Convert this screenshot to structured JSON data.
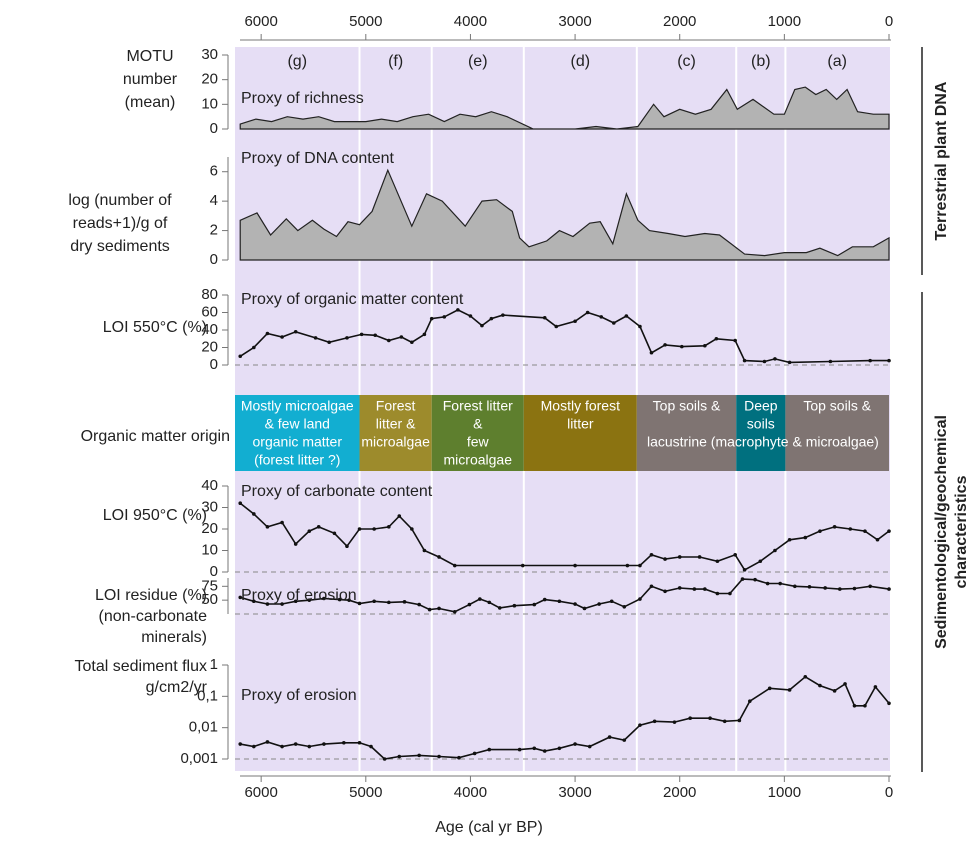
{
  "axis": {
    "xlabel": "Age (cal yr BP)",
    "xlim": [
      6250,
      0
    ],
    "xticks": [
      6000,
      5000,
      4000,
      3000,
      2000,
      1000,
      0
    ],
    "zones": {
      "labels": [
        "(g)",
        "(f)",
        "(e)",
        "(d)",
        "(c)",
        "(b)",
        "(a)"
      ],
      "bounds": [
        5060,
        4370,
        3490,
        2410,
        1460,
        990
      ]
    }
  },
  "groups": [
    [
      "Terrestrial plant DNA"
    ],
    [
      "Sedimentological/geochemical",
      "characteristics"
    ]
  ],
  "origin": {
    "label": "Organic matter origin",
    "span_text": "lacustrine (macrophyte & microalgae)",
    "boxes": [
      {
        "lines": [
          "Mostly microalgae",
          "& few land",
          "organic matter",
          "(forest litter ?)"
        ],
        "color": "#12aed1"
      },
      {
        "lines": [
          "Forest",
          "litter &",
          "microalgae"
        ],
        "color": "#9d8b2c"
      },
      {
        "lines": [
          "Forest litter",
          "&",
          "few",
          "microalgae"
        ],
        "color": "#5e7f2e"
      },
      {
        "lines": [
          "Mostly forest",
          "litter"
        ],
        "color": "#8b7311"
      },
      {
        "lines": [
          "Top soils &"
        ],
        "color": "#7f7472"
      },
      {
        "lines": [
          "Deep",
          "soils"
        ],
        "color": "#00707f"
      },
      {
        "lines": [
          "Top soils &"
        ],
        "color": "#7f7472"
      }
    ]
  },
  "chart_data": [
    {
      "type": "area",
      "ylabel": [
        "MOTU",
        "number",
        "(mean)"
      ],
      "subtitle": "Proxy of richness",
      "color": "#b3b3b3",
      "x": [
        6200,
        6050,
        5900,
        5750,
        5600,
        5450,
        5300,
        5150,
        5000,
        4850,
        4700,
        4550,
        4400,
        4250,
        4100,
        3950,
        3800,
        3650,
        3400,
        3200,
        3000,
        2800,
        2600,
        2400,
        2250,
        2150,
        2000,
        1850,
        1700,
        1550,
        1450,
        1300,
        1200,
        1100,
        1000,
        900,
        800,
        700,
        600,
        500,
        400,
        300,
        150,
        0
      ],
      "values": [
        2,
        4,
        3,
        5,
        4,
        5,
        3,
        3,
        3,
        4,
        3,
        5,
        6,
        3,
        6,
        5,
        7,
        5,
        0,
        0,
        0,
        1,
        0,
        1,
        10,
        5,
        8,
        6,
        8,
        16,
        8,
        12,
        9,
        6,
        6,
        16,
        17,
        14,
        16,
        12,
        16,
        7,
        6,
        6
      ],
      "ylim": [
        0,
        30
      ],
      "yticks": [
        0,
        10,
        20,
        30
      ]
    },
    {
      "type": "area",
      "ylabel": [
        "log (number of",
        "reads+1)/g of",
        "dry sediments"
      ],
      "subtitle": "Proxy of DNA content",
      "color": "#b3b3b3",
      "x": [
        6200,
        6040,
        5910,
        5760,
        5650,
        5510,
        5400,
        5280,
        5170,
        5060,
        4940,
        4790,
        4560,
        4420,
        4270,
        4050,
        3890,
        3750,
        3600,
        3530,
        3440,
        3270,
        3150,
        3020,
        2860,
        2760,
        2640,
        2510,
        2400,
        2290,
        2110,
        1950,
        1760,
        1620,
        1380,
        1190,
        1000,
        790,
        660,
        490,
        350,
        150,
        0
      ],
      "values": [
        2.7,
        3.2,
        1.7,
        2.8,
        2.0,
        2.7,
        2.1,
        1.6,
        2.6,
        2.4,
        3.3,
        6.1,
        2.3,
        4.5,
        4.0,
        2.3,
        4.0,
        4.1,
        3.3,
        1.5,
        0.9,
        1.3,
        2.0,
        1.6,
        2.5,
        2.6,
        1.1,
        4.5,
        2.7,
        2.0,
        1.8,
        1.6,
        1.8,
        1.7,
        0.4,
        0.3,
        0.5,
        0.5,
        0.8,
        0.3,
        0.9,
        0.9,
        1.5
      ],
      "ylim": [
        0,
        7
      ],
      "yticks": [
        0,
        2,
        4,
        6
      ]
    },
    {
      "type": "line",
      "ylabel": [
        "LOI 550°C (%)"
      ],
      "subtitle": "Proxy of organic matter content",
      "color": "#111111",
      "baseline": true,
      "x": [
        6200,
        6070,
        5940,
        5800,
        5670,
        5480,
        5350,
        5180,
        5040,
        4910,
        4780,
        4660,
        4560,
        4440,
        4370,
        4250,
        4120,
        4000,
        3890,
        3800,
        3690,
        3290,
        3180,
        3000,
        2880,
        2750,
        2630,
        2510,
        2380,
        2270,
        2140,
        1980,
        1760,
        1650,
        1470,
        1380,
        1190,
        1090,
        950,
        560,
        180,
        0
      ],
      "values": [
        10,
        20,
        36,
        32,
        38,
        31,
        26,
        31,
        35,
        34,
        28,
        32,
        26,
        35,
        53,
        55,
        63,
        56,
        45,
        53,
        57,
        54,
        44,
        50,
        60,
        55,
        48,
        56,
        44,
        14,
        23,
        21,
        22,
        30,
        28,
        5,
        4,
        7,
        3,
        4,
        5,
        5
      ],
      "ylim": [
        0,
        80
      ],
      "yticks": [
        0,
        20,
        40,
        60,
        80
      ]
    },
    {
      "type": "line",
      "ylabel": [
        "LOI 950°C (%)"
      ],
      "subtitle": "Proxy of carbonate content",
      "color": "#111111",
      "baseline": true,
      "x": [
        6200,
        6070,
        5940,
        5800,
        5670,
        5540,
        5450,
        5300,
        5180,
        5060,
        4920,
        4780,
        4680,
        4560,
        4440,
        4300,
        4150,
        3500,
        3000,
        2500,
        2380,
        2270,
        2140,
        2000,
        1810,
        1640,
        1470,
        1380,
        1230,
        1090,
        950,
        800,
        660,
        520,
        370,
        230,
        110,
        0
      ],
      "values": [
        32,
        27,
        21,
        23,
        13,
        19,
        21,
        18,
        12,
        20,
        20,
        21,
        26,
        20,
        10,
        7,
        3,
        3,
        3,
        3,
        3,
        8,
        6,
        7,
        7,
        5,
        8,
        1,
        5,
        10,
        15,
        16,
        19,
        21,
        20,
        19,
        15,
        19
      ],
      "ylim": [
        0,
        40
      ],
      "yticks": [
        0,
        10,
        20,
        30,
        40
      ]
    },
    {
      "type": "line",
      "ylabel": [
        "LOI residue (%)",
        "(non-carbonate",
        "minerals)"
      ],
      "subtitle": "Proxy of erosion",
      "color": "#111111",
      "baseline": true,
      "x": [
        6200,
        6070,
        5940,
        5800,
        5670,
        5540,
        5400,
        5250,
        5160,
        5060,
        4920,
        4780,
        4630,
        4490,
        4390,
        4300,
        4150,
        4010,
        3910,
        3820,
        3720,
        3580,
        3390,
        3290,
        3150,
        3000,
        2910,
        2770,
        2650,
        2530,
        2380,
        2270,
        2140,
        2000,
        1860,
        1760,
        1640,
        1520,
        1400,
        1280,
        1160,
        1040,
        900,
        760,
        610,
        470,
        330,
        180,
        0
      ],
      "values": [
        55,
        48,
        43,
        43,
        48,
        50,
        53,
        51,
        50,
        44,
        48,
        46,
        47,
        42,
        33,
        35,
        29,
        42,
        52,
        46,
        36,
        40,
        42,
        51,
        48,
        43,
        35,
        43,
        48,
        38,
        52,
        75,
        66,
        72,
        70,
        70,
        62,
        62,
        88,
        87,
        80,
        80,
        75,
        74,
        72,
        70,
        71,
        75,
        70
      ],
      "ylim": [
        25,
        90
      ],
      "yticks": [
        50,
        75
      ]
    },
    {
      "type": "line",
      "log": true,
      "ylabel": [
        "Total sediment flux",
        "g/cm2/yr"
      ],
      "subtitle": "Proxy of erosion",
      "color": "#111111",
      "baseline": true,
      "x": [
        6200,
        6070,
        5940,
        5800,
        5670,
        5540,
        5400,
        5210,
        5060,
        4950,
        4820,
        4680,
        4490,
        4300,
        4110,
        3960,
        3820,
        3530,
        3390,
        3290,
        3150,
        3000,
        2860,
        2670,
        2530,
        2380,
        2240,
        2050,
        1900,
        1710,
        1570,
        1430,
        1330,
        1140,
        950,
        800,
        660,
        520,
        420,
        330,
        230,
        130,
        0
      ],
      "values": [
        0.003,
        0.0025,
        0.0035,
        0.0025,
        0.003,
        0.0025,
        0.003,
        0.0033,
        0.0033,
        0.0025,
        0.001,
        0.0012,
        0.0013,
        0.0012,
        0.0011,
        0.0015,
        0.002,
        0.002,
        0.0022,
        0.0018,
        0.0022,
        0.003,
        0.0025,
        0.005,
        0.004,
        0.012,
        0.016,
        0.015,
        0.02,
        0.02,
        0.016,
        0.017,
        0.07,
        0.18,
        0.16,
        0.42,
        0.22,
        0.15,
        0.25,
        0.05,
        0.05,
        0.2,
        0.06
      ],
      "ylim": [
        0.001,
        1
      ],
      "yticks": [
        1,
        {
          "value": 0.1,
          "label": "0,1"
        },
        {
          "value": 0.01,
          "label": "0,01"
        },
        {
          "value": 0.001,
          "label": "0,001"
        }
      ]
    }
  ]
}
